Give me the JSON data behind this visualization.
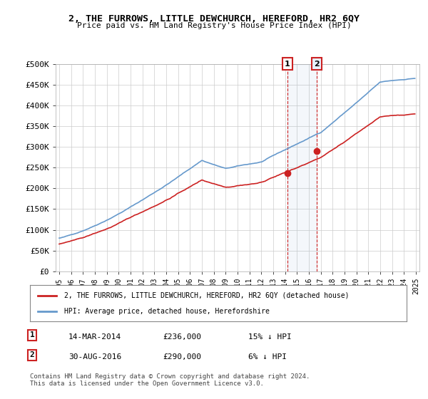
{
  "title": "2, THE FURROWS, LITTLE DEWCHURCH, HEREFORD, HR2 6QY",
  "subtitle": "Price paid vs. HM Land Registry's House Price Index (HPI)",
  "legend_line1": "2, THE FURROWS, LITTLE DEWCHURCH, HEREFORD, HR2 6QY (detached house)",
  "legend_line2": "HPI: Average price, detached house, Herefordshire",
  "transaction1_date": "14-MAR-2014",
  "transaction1_price": 236000,
  "transaction1_label": "15% ↓ HPI",
  "transaction2_date": "30-AUG-2016",
  "transaction2_price": 290000,
  "transaction2_label": "6% ↓ HPI",
  "footer": "Contains HM Land Registry data © Crown copyright and database right 2024.\nThis data is licensed under the Open Government Licence v3.0.",
  "hpi_color": "#6699cc",
  "price_color": "#cc2222",
  "marker_color": "#cc2222",
  "vline_color": "#cc2222",
  "marker1_color": "#cc2222",
  "marker2_color": "#cc2222",
  "background_color": "#ffffff",
  "grid_color": "#cccccc",
  "ylim": [
    0,
    500000
  ],
  "yticks": [
    0,
    50000,
    100000,
    150000,
    200000,
    250000,
    300000,
    350000,
    400000,
    450000,
    500000
  ]
}
